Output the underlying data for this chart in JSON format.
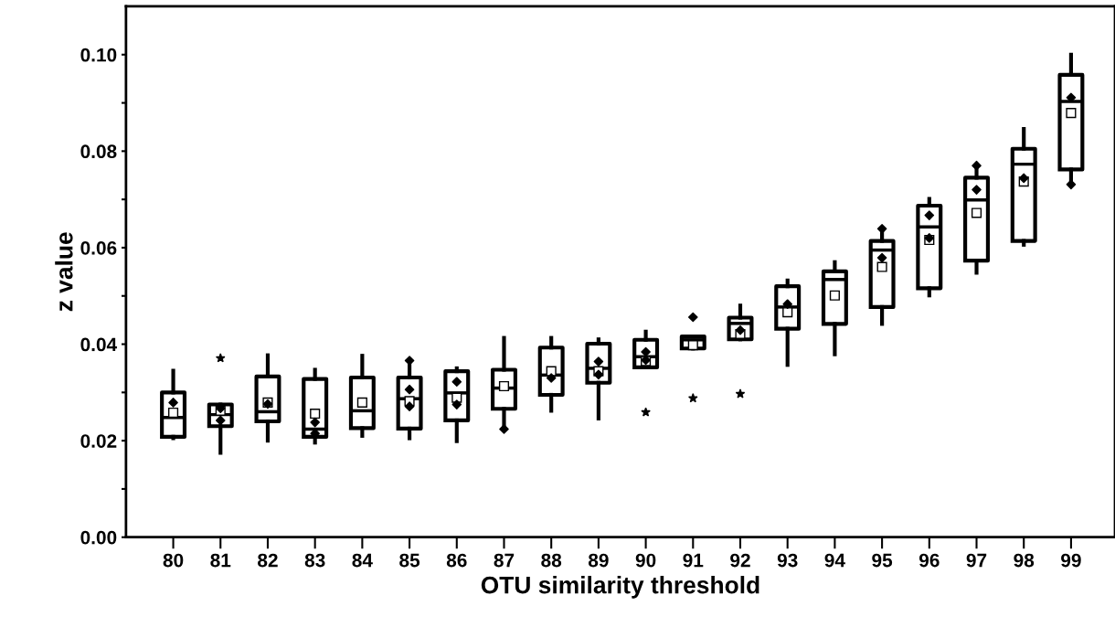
{
  "chart_data": {
    "type": "box",
    "xlabel": "OTU similarity threshold",
    "ylabel": "z value",
    "categories": [
      "80",
      "81",
      "82",
      "83",
      "84",
      "85",
      "86",
      "87",
      "88",
      "89",
      "90",
      "91",
      "92",
      "93",
      "94",
      "95",
      "96",
      "97",
      "98",
      "99"
    ],
    "boxes": [
      {
        "low": 0.0205,
        "q1": 0.0208,
        "median": 0.0248,
        "q3": 0.03,
        "high": 0.0345,
        "mean": 0.0258
      },
      {
        "low": 0.0175,
        "q1": 0.023,
        "median": 0.0254,
        "q3": 0.0275,
        "high": 0.0275,
        "mean": 0.0262,
        "outliers": [
          0.0371
        ]
      },
      {
        "low": 0.02,
        "q1": 0.024,
        "median": 0.026,
        "q3": 0.0333,
        "high": 0.0377,
        "mean": 0.0279
      },
      {
        "low": 0.0196,
        "q1": 0.0208,
        "median": 0.0224,
        "q3": 0.0328,
        "high": 0.0347,
        "mean": 0.0256
      },
      {
        "low": 0.021,
        "q1": 0.0226,
        "median": 0.0262,
        "q3": 0.0331,
        "high": 0.0376,
        "mean": 0.0279
      },
      {
        "low": 0.0205,
        "q1": 0.0225,
        "median": 0.0287,
        "q3": 0.0331,
        "high": 0.0362,
        "mean": 0.0282
      },
      {
        "low": 0.0199,
        "q1": 0.0242,
        "median": 0.0299,
        "q3": 0.0344,
        "high": 0.035,
        "mean": 0.0289
      },
      {
        "low": 0.0225,
        "q1": 0.0266,
        "median": 0.0309,
        "q3": 0.0347,
        "high": 0.0413,
        "mean": 0.0313
      },
      {
        "low": 0.0262,
        "q1": 0.0295,
        "median": 0.0336,
        "q3": 0.0393,
        "high": 0.0413,
        "mean": 0.0344
      },
      {
        "low": 0.0246,
        "q1": 0.032,
        "median": 0.035,
        "q3": 0.0401,
        "high": 0.041,
        "mean": 0.0344
      },
      {
        "low": 0.0352,
        "q1": 0.0352,
        "median": 0.0374,
        "q3": 0.0409,
        "high": 0.0426,
        "mean": 0.0365,
        "outliers": [
          0.0259
        ]
      },
      {
        "low": 0.0391,
        "q1": 0.0391,
        "median": 0.0409,
        "q3": 0.0416,
        "high": 0.0416,
        "mean": 0.0398,
        "outliers": [
          0.0288
        ]
      },
      {
        "low": 0.041,
        "q1": 0.041,
        "median": 0.0443,
        "q3": 0.0455,
        "high": 0.048,
        "mean": 0.0421,
        "outliers": [
          0.0297
        ]
      },
      {
        "low": 0.0357,
        "q1": 0.0432,
        "median": 0.0477,
        "q3": 0.052,
        "high": 0.0532,
        "mean": 0.0466
      },
      {
        "low": 0.0379,
        "q1": 0.0442,
        "median": 0.0534,
        "q3": 0.0551,
        "high": 0.057,
        "mean": 0.0501
      },
      {
        "low": 0.0442,
        "q1": 0.0477,
        "median": 0.0595,
        "q3": 0.0614,
        "high": 0.064,
        "mean": 0.056
      },
      {
        "low": 0.0501,
        "q1": 0.0516,
        "median": 0.0643,
        "q3": 0.0687,
        "high": 0.0701,
        "mean": 0.0616
      },
      {
        "low": 0.0548,
        "q1": 0.0573,
        "median": 0.0699,
        "q3": 0.0745,
        "high": 0.077,
        "mean": 0.0672
      },
      {
        "low": 0.0606,
        "q1": 0.0614,
        "median": 0.0773,
        "q3": 0.0805,
        "high": 0.0846,
        "mean": 0.0737
      },
      {
        "low": 0.073,
        "q1": 0.0762,
        "median": 0.0903,
        "q3": 0.0958,
        "high": 0.1,
        "mean": 0.0879
      }
    ],
    "series": [
      {
        "type": "scatter",
        "color": "#000000",
        "marker": "diamond",
        "x": [
          "80",
          "81",
          "81",
          "82",
          "83",
          "83",
          "85",
          "85",
          "85",
          "86",
          "86",
          "87",
          "88",
          "89",
          "89",
          "90",
          "90",
          "91",
          "92",
          "93",
          "95",
          "95",
          "96",
          "96",
          "97",
          "97",
          "98",
          "99",
          "99"
        ],
        "values": [
          0.0279,
          0.0267,
          0.0242,
          0.0276,
          0.0238,
          0.0215,
          0.0366,
          0.0306,
          0.0271,
          0.0322,
          0.0275,
          0.0224,
          0.033,
          0.0364,
          0.0337,
          0.0384,
          0.0367,
          0.0456,
          0.0429,
          0.0483,
          0.0579,
          0.0639,
          0.0667,
          0.062,
          0.072,
          0.077,
          0.0744,
          0.0911,
          0.0731
        ]
      }
    ],
    "ylim": [
      0,
      0.11
    ],
    "yticks": [
      {
        "value": 0,
        "label": "0.00"
      },
      {
        "value": 0.01,
        "label": null
      },
      {
        "value": 0.02,
        "label": "0.02"
      },
      {
        "value": 0.03,
        "label": null
      },
      {
        "value": 0.04,
        "label": "0.04"
      },
      {
        "value": 0.05,
        "label": null
      },
      {
        "value": 0.06,
        "label": "0.06"
      },
      {
        "value": 0.07,
        "label": null
      },
      {
        "value": 0.08,
        "label": "0.08"
      },
      {
        "value": 0.09,
        "label": null
      },
      {
        "value": 0.1,
        "label": "0.10"
      }
    ],
    "color": "#000000",
    "grid": false,
    "legend": false
  }
}
